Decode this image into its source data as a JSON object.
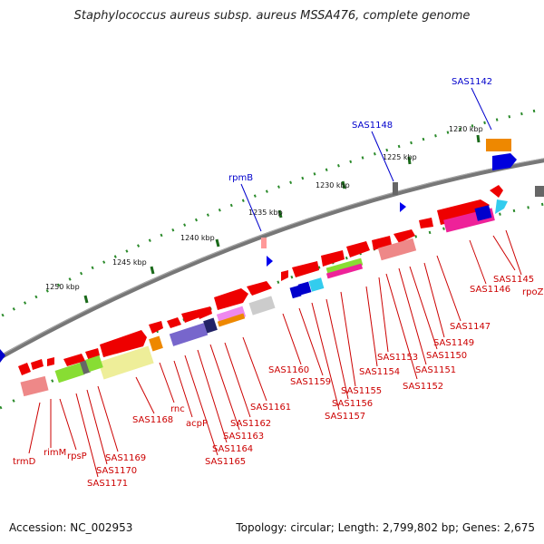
{
  "title": "Staphylococcus aureus subsp. aureus MSSA476, complete genome",
  "accession": "Accession: NC_002953",
  "topology": "Topology: circular; Length: 2,799,802 bp; Genes: 2,675",
  "colors": {
    "feature_label": "#cc0000",
    "marker_label": "#0000cc",
    "backbone": "#777777",
    "tick": "#1a7a1a"
  },
  "kbp_labels": [
    "1220 kbp",
    "1225 kbp",
    "1230 kbp",
    "1235 kbp",
    "1240 kbp",
    "1245 kbp",
    "1250 kbp"
  ],
  "marker_labels": [
    "SAS1142",
    "SAS1148",
    "rpmB"
  ],
  "gene_labels": [
    "SAS1145",
    "rpoZ",
    "SAS1146",
    "SAS1147",
    "SAS1149",
    "SAS1150",
    "SAS1151",
    "SAS1152",
    "SAS1153",
    "SAS1154",
    "SAS1155",
    "SAS1156",
    "SAS1157",
    "SAS1159",
    "SAS1160",
    "SAS1161",
    "SAS1162",
    "SAS1163",
    "SAS1164",
    "SAS1165",
    "acpP",
    "rnc",
    "SAS1168",
    "SAS1169",
    "SAS1170",
    "SAS1171",
    "rpsP",
    "rimM",
    "trmD"
  ]
}
